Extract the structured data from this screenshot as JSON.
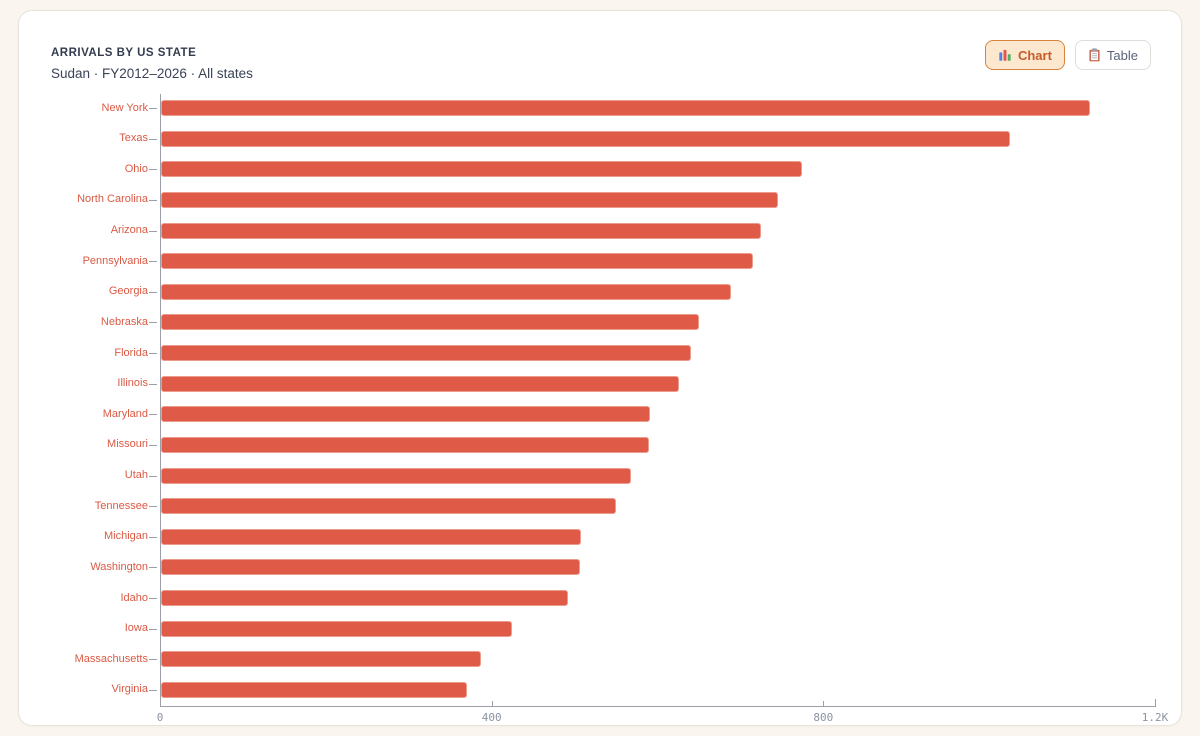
{
  "header": {
    "title": "ARRIVALS BY US STATE",
    "subtitle": "Sudan · FY2012–2026 · All states"
  },
  "toolbar": {
    "chart_label": "Chart",
    "table_label": "Table"
  },
  "colors": {
    "background": "#FAF5EE",
    "card": "#FFFFFF",
    "bar": "#E05A48",
    "bar_label": "#DA5A45",
    "axis": "#9C9FA8",
    "x_tick_text": "#8B93A3",
    "title_text": "#333B4F",
    "active_button_bg": "#FBE8CE",
    "active_button_border": "#D9833B",
    "active_button_text": "#C75B2C",
    "inactive_button_text": "#58627A"
  },
  "chart_data": {
    "type": "bar",
    "orientation": "horizontal",
    "title": "ARRIVALS BY US STATE",
    "subtitle": "Sudan · FY2012–2026 · All states",
    "xlabel": "",
    "ylabel": "",
    "xlim": [
      0,
      1200
    ],
    "grid": false,
    "legend": "none",
    "categories": [
      "New York",
      "Texas",
      "Ohio",
      "North Carolina",
      "Arizona",
      "Pennsylvania",
      "Georgia",
      "Nebraska",
      "Florida",
      "Illinois",
      "Maryland",
      "Missouri",
      "Utah",
      "Tennessee",
      "Michigan",
      "Washington",
      "Idaho",
      "Iowa",
      "Massachusetts",
      "Virginia"
    ],
    "values": [
      1120,
      1024,
      773,
      744,
      724,
      714,
      688,
      649,
      639,
      625,
      590,
      589,
      567,
      549,
      507,
      505,
      491,
      423,
      386,
      369
    ],
    "xticks": [
      {
        "value": 0,
        "label": "0"
      },
      {
        "value": 400,
        "label": "400"
      },
      {
        "value": 800,
        "label": "800"
      },
      {
        "value": 1200,
        "label": "1.2K"
      }
    ]
  }
}
